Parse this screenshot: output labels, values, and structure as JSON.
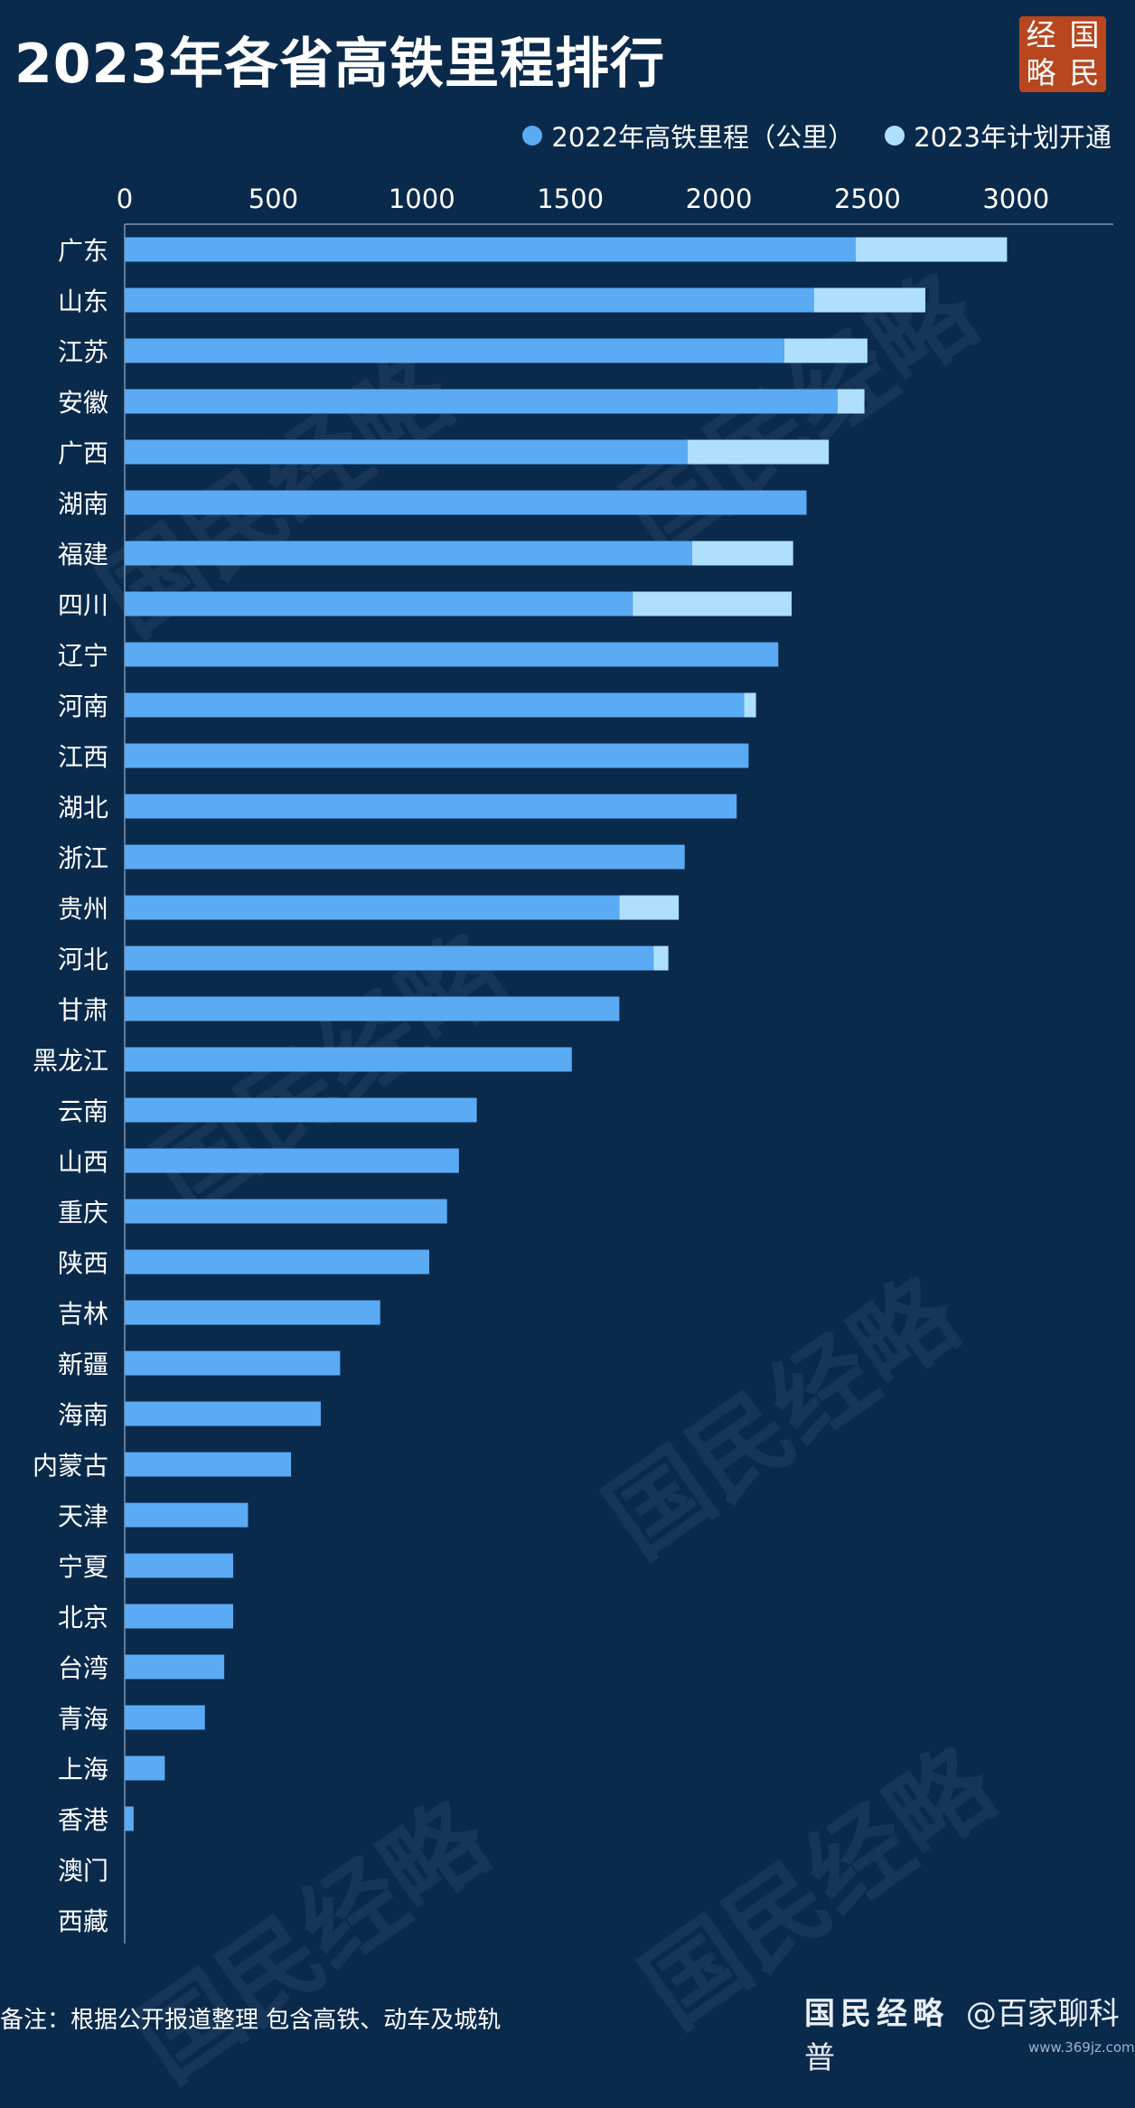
{
  "title": "2023年各省高铁里程排行",
  "logo": {
    "chars": [
      "经",
      "国",
      "略",
      "民"
    ]
  },
  "legend": [
    {
      "label": "2022年高铁里程（公里）",
      "color": "#5aabf4"
    },
    {
      "label": "2023年计划开通",
      "color": "#aee0fb"
    }
  ],
  "note": "备注：根据公开报道整理  包含高铁、动车及城轨",
  "source": {
    "mark": "国民经略",
    "text": "@百家聊科普"
  },
  "site": "www.369jz.com",
  "watermark_text": "国民经略",
  "chart_data": {
    "type": "bar",
    "orientation": "horizontal",
    "stacked": true,
    "title": "2023年各省高铁里程排行",
    "xlim": [
      0,
      3200
    ],
    "xticks": [
      0,
      500,
      1000,
      1500,
      2000,
      2500,
      3000
    ],
    "x_axis_position": "top",
    "grid": false,
    "legend_position": "top-right",
    "categories": [
      "广东",
      "山东",
      "江苏",
      "安徽",
      "广西",
      "湖南",
      "福建",
      "四川",
      "辽宁",
      "河南",
      "江西",
      "湖北",
      "浙江",
      "贵州",
      "河北",
      "甘肃",
      "黑龙江",
      "云南",
      "山西",
      "重庆",
      "陕西",
      "吉林",
      "新疆",
      "海南",
      "内蒙古",
      "天津",
      "宁夏",
      "北京",
      "台湾",
      "青海",
      "上海",
      "香港",
      "澳门",
      "西藏"
    ],
    "series": [
      {
        "name": "2022年高铁里程（公里）",
        "color": "#5aabf4",
        "values": [
          2460,
          2320,
          2220,
          2400,
          1895,
          2295,
          1910,
          1710,
          2200,
          2085,
          2100,
          2060,
          1885,
          1665,
          1780,
          1665,
          1505,
          1185,
          1125,
          1085,
          1025,
          860,
          725,
          660,
          560,
          415,
          365,
          365,
          335,
          270,
          135,
          30,
          0,
          0
        ]
      },
      {
        "name": "2023年计划开通",
        "color": "#aee0fb",
        "values": [
          510,
          375,
          280,
          90,
          475,
          0,
          340,
          535,
          0,
          40,
          0,
          0,
          0,
          200,
          50,
          0,
          0,
          0,
          0,
          0,
          0,
          0,
          0,
          0,
          0,
          0,
          0,
          0,
          0,
          0,
          0,
          0,
          0,
          0
        ]
      }
    ]
  }
}
